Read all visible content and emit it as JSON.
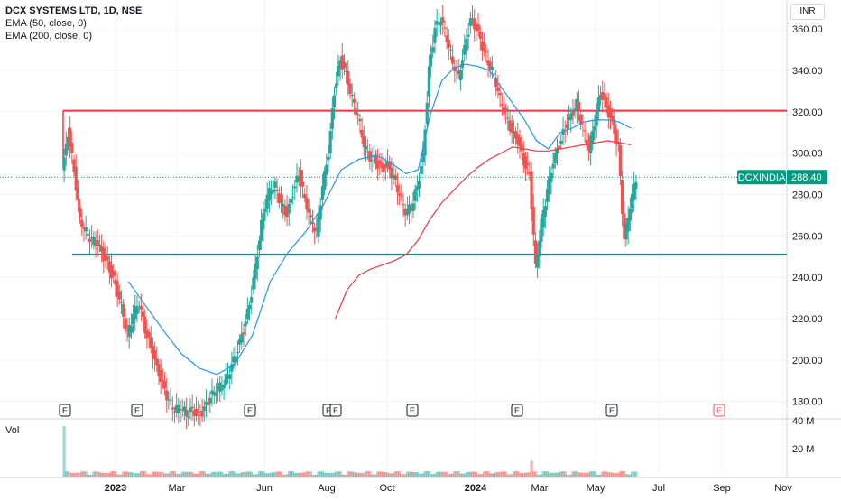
{
  "legend": {
    "title": "DCX SYSTEMS LTD, 1D, NSE",
    "ema50": "EMA (50, close, 0)",
    "ema200": "EMA (200, close, 0)"
  },
  "currency": "INR",
  "volume_label": "Vol",
  "colors": {
    "up": "#26a69a",
    "down": "#ef5350",
    "resistance": "#f23645",
    "support": "#089981",
    "ema50": "#2196f3",
    "ema200": "#f23645",
    "price_tag": "#089981"
  },
  "chart_data": {
    "type": "candlestick",
    "symbol": "DCXINDIA",
    "last_price": 288.4,
    "last_price_label": "288.40",
    "x_labels": [
      "2023",
      "Mar",
      "Jun",
      "Aug",
      "Oct",
      "2024",
      "Mar",
      "May",
      "Jul",
      "Sep",
      "Nov"
    ],
    "y_ticks": [
      180,
      200,
      220,
      240,
      260,
      280,
      300,
      320,
      340,
      360
    ],
    "y_tick_labels": [
      "180.00",
      "200.00",
      "220.00",
      "240.00",
      "260.00",
      "280.00",
      "300.00",
      "320.00",
      "340.00",
      "360.00"
    ],
    "ylim": [
      172,
      374
    ],
    "volume_ticks": [
      "40 M",
      "20 M"
    ],
    "horizontal_lines": [
      {
        "name": "resistance",
        "value": 320.5
      },
      {
        "name": "support",
        "value": 251
      }
    ],
    "earnings_markers": [
      "E",
      "E",
      "E",
      "E",
      "E",
      "E",
      "E",
      "E"
    ],
    "future_earnings_marker": "E",
    "series": [
      {
        "name": "price",
        "points": [
          [
            0,
            290
          ],
          [
            1,
            310
          ],
          [
            2,
            292
          ],
          [
            3,
            268
          ],
          [
            4,
            262
          ],
          [
            5,
            258
          ],
          [
            6,
            256
          ],
          [
            7,
            250
          ],
          [
            8,
            244
          ],
          [
            9,
            236
          ],
          [
            10,
            226
          ],
          [
            11,
            212
          ],
          [
            12,
            222
          ],
          [
            13,
            228
          ],
          [
            14,
            215
          ],
          [
            15,
            206
          ],
          [
            16,
            196
          ],
          [
            17,
            188
          ],
          [
            18,
            180
          ],
          [
            19,
            176
          ],
          [
            20,
            178
          ],
          [
            21,
            174
          ],
          [
            22,
            176
          ],
          [
            23,
            172
          ],
          [
            24,
            176
          ],
          [
            25,
            182
          ],
          [
            26,
            186
          ],
          [
            27,
            188
          ],
          [
            28,
            193
          ],
          [
            29,
            200
          ],
          [
            30,
            208
          ],
          [
            31,
            218
          ],
          [
            32,
            232
          ],
          [
            33,
            252
          ],
          [
            34,
            272
          ],
          [
            35,
            282
          ],
          [
            36,
            284
          ],
          [
            37,
            275
          ],
          [
            38,
            270
          ],
          [
            39,
            281
          ],
          [
            40,
            290
          ],
          [
            41,
            278
          ],
          [
            42,
            268
          ],
          [
            43,
            262
          ],
          [
            44,
            284
          ],
          [
            45,
            300
          ],
          [
            46,
            330
          ],
          [
            47,
            345
          ],
          [
            48,
            338
          ],
          [
            49,
            326
          ],
          [
            50,
            318
          ],
          [
            51,
            304
          ],
          [
            52,
            298
          ],
          [
            53,
            296
          ],
          [
            54,
            292
          ],
          [
            55,
            294
          ],
          [
            56,
            288
          ],
          [
            57,
            280
          ],
          [
            58,
            272
          ],
          [
            59,
            274
          ],
          [
            60,
            284
          ],
          [
            61,
            298
          ],
          [
            62,
            340
          ],
          [
            63,
            360
          ],
          [
            64,
            365
          ],
          [
            65,
            356
          ],
          [
            66,
            344
          ],
          [
            67,
            337
          ],
          [
            68,
            350
          ],
          [
            69,
            364
          ],
          [
            70,
            360
          ],
          [
            71,
            352
          ],
          [
            72,
            344
          ],
          [
            73,
            338
          ],
          [
            74,
            326
          ],
          [
            75,
            318
          ],
          [
            76,
            310
          ],
          [
            77,
            306
          ],
          [
            78,
            296
          ],
          [
            79,
            290
          ],
          [
            80,
            245
          ],
          [
            81,
            266
          ],
          [
            82,
            282
          ],
          [
            83,
            296
          ],
          [
            84,
            304
          ],
          [
            85,
            312
          ],
          [
            86,
            318
          ],
          [
            87,
            324
          ],
          [
            88,
            312
          ],
          [
            89,
            302
          ],
          [
            90,
            315
          ],
          [
            91,
            330
          ],
          [
            92,
            322
          ],
          [
            93,
            314
          ],
          [
            94,
            302
          ],
          [
            95,
            258
          ],
          [
            96,
            275
          ],
          [
            97,
            288
          ]
        ]
      },
      {
        "name": "ema50",
        "points": [
          [
            11,
            238
          ],
          [
            14,
            226
          ],
          [
            17,
            214
          ],
          [
            20,
            203
          ],
          [
            23,
            196
          ],
          [
            26,
            193
          ],
          [
            29,
            198
          ],
          [
            32,
            212
          ],
          [
            35,
            238
          ],
          [
            38,
            252
          ],
          [
            41,
            262
          ],
          [
            44,
            275
          ],
          [
            47,
            292
          ],
          [
            50,
            297
          ],
          [
            53,
            299
          ],
          [
            56,
            294
          ],
          [
            58,
            290
          ],
          [
            60,
            292
          ],
          [
            62,
            318
          ],
          [
            64,
            335
          ],
          [
            66,
            341
          ],
          [
            68,
            343
          ],
          [
            70,
            342
          ],
          [
            72,
            340
          ],
          [
            74,
            332
          ],
          [
            76,
            324
          ],
          [
            78,
            316
          ],
          [
            80,
            306
          ],
          [
            82,
            302
          ],
          [
            84,
            310
          ],
          [
            86,
            312
          ],
          [
            88,
            315
          ],
          [
            90,
            316
          ],
          [
            92,
            316
          ],
          [
            94,
            315
          ],
          [
            96,
            312
          ]
        ]
      },
      {
        "name": "ema200",
        "points": [
          [
            46,
            220
          ],
          [
            48,
            234
          ],
          [
            50,
            241
          ],
          [
            52,
            244
          ],
          [
            54,
            246
          ],
          [
            56,
            248
          ],
          [
            58,
            251
          ],
          [
            60,
            258
          ],
          [
            62,
            268
          ],
          [
            64,
            276
          ],
          [
            66,
            282
          ],
          [
            68,
            288
          ],
          [
            70,
            293
          ],
          [
            72,
            297
          ],
          [
            74,
            300
          ],
          [
            76,
            303
          ],
          [
            78,
            302
          ],
          [
            80,
            301
          ],
          [
            82,
            301
          ],
          [
            84,
            302
          ],
          [
            86,
            303
          ],
          [
            88,
            304
          ],
          [
            90,
            305
          ],
          [
            92,
            306
          ],
          [
            94,
            305
          ],
          [
            96,
            304
          ]
        ]
      }
    ]
  }
}
